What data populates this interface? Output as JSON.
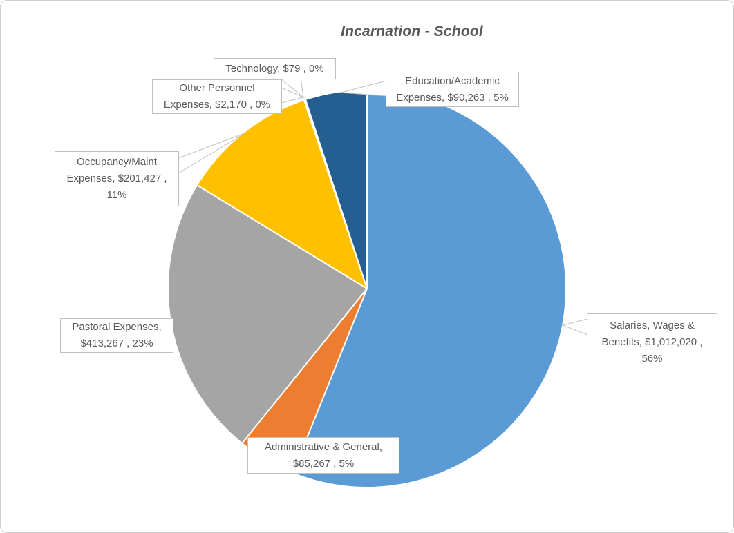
{
  "title": "Incarnation - School",
  "chart_data": {
    "type": "pie",
    "title": "Incarnation - School",
    "start_angle_deg": 0,
    "direction": "clockwise",
    "legend": "none",
    "label_format": "category, $value , percent%",
    "total": 1804493,
    "slices": [
      {
        "category": "Salaries, Wages & Benefits",
        "value": 1012020,
        "percent_label": "56%",
        "color": "#5B9BD5",
        "callout_text": "Salaries, Wages &\nBenefits,  $1,012,020 ,\n56%"
      },
      {
        "category": "Administrative & General",
        "value": 85267,
        "percent_label": "5%",
        "color": "#ED7D31",
        "callout_text": "Administrative & General,\n$85,267 , 5%"
      },
      {
        "category": "Pastoral Expenses",
        "value": 413267,
        "percent_label": "23%",
        "color": "#A5A5A5",
        "callout_text": "Pastoral Expenses,\n$413,267 , 23%"
      },
      {
        "category": "Occupancy/Maint Expenses",
        "value": 201427,
        "percent_label": "11%",
        "color": "#FFC000",
        "callout_text": "Occupancy/Maint\nExpenses,  $201,427 ,\n11%"
      },
      {
        "category": "Other Personnel Expenses",
        "value": 2170,
        "percent_label": "0%",
        "color": "#4472C4",
        "callout_text": "Other Personnel\nExpenses,  $2,170 , 0%"
      },
      {
        "category": "Technology",
        "value": 79,
        "percent_label": "0%",
        "color": "#70AD47",
        "callout_text": "Technology,  $79 , 0%"
      },
      {
        "category": "Education/Academic Expenses",
        "value": 90263,
        "percent_label": "5%",
        "color": "#255E91",
        "callout_text": "Education/Academic\nExpenses,  $90,263 , 5%"
      }
    ]
  }
}
